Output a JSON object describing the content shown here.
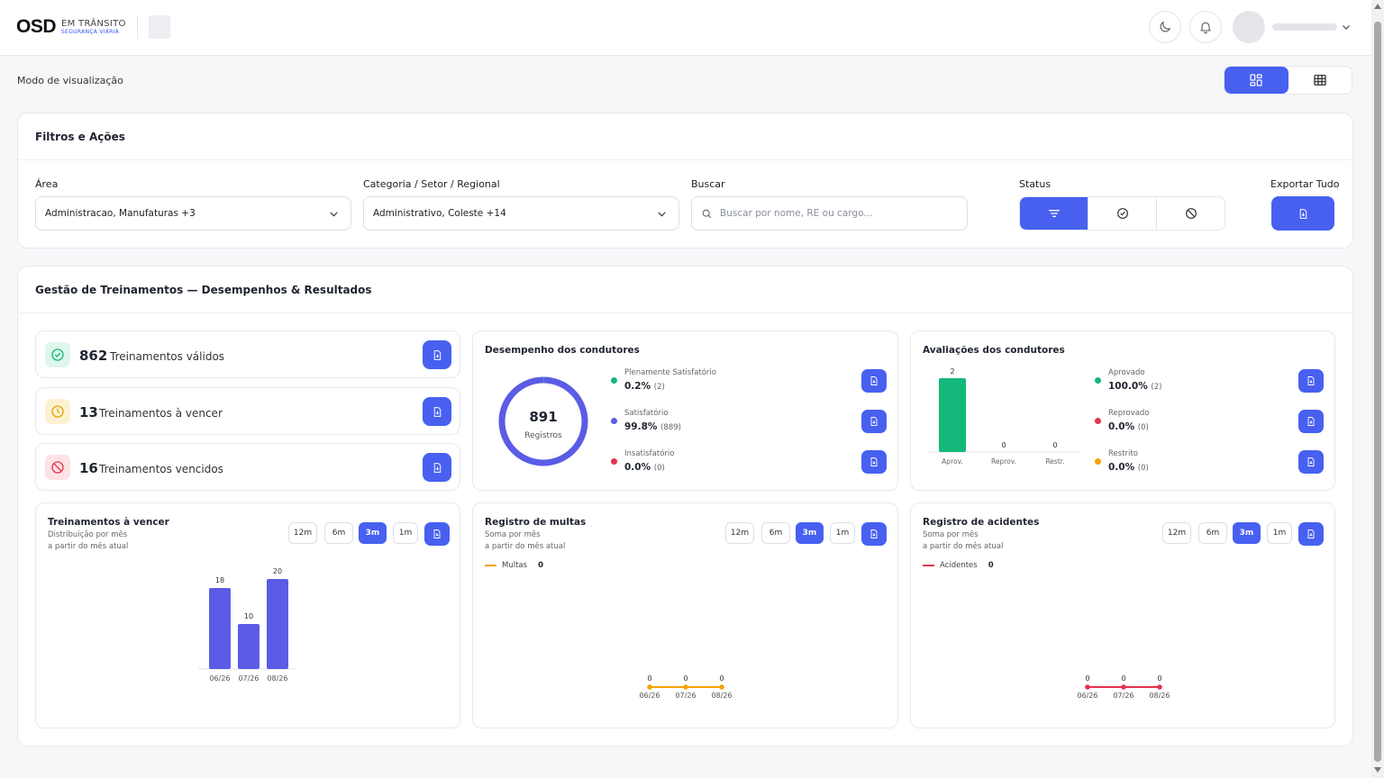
{
  "brand": {
    "logo": "OSD",
    "line1": "EM TRÂNSITO",
    "line2": "SEGURANÇA VIÁRIA"
  },
  "header": {
    "theme_icon": "moon-icon",
    "notif_icon": "bell-icon"
  },
  "view": {
    "label": "Modo de visualização",
    "options": [
      "grid-view-icon",
      "table-view-icon"
    ],
    "selected": 0
  },
  "filters": {
    "title": "Filtros e Ações",
    "area_label": "Área",
    "area_value": "Administracao, Manufaturas +3",
    "category_label": "Categoria / Setor / Regional",
    "category_value": "Administrativo, Coleste +14",
    "search_label": "Buscar",
    "search_placeholder": "Buscar por nome, RE ou cargo...",
    "status_label": "Status",
    "export_label": "Exportar Tudo"
  },
  "main": {
    "title": "Gestão de Treinamentos — Desempenhos & Resultados"
  },
  "kpis": [
    {
      "value": "862",
      "label": "Treinamentos válidos",
      "icon": "check-circle-icon",
      "color": "#14b87a",
      "bg": "#dff6ec"
    },
    {
      "value": "13",
      "label": "Treinamentos à vencer",
      "icon": "clock-alert-icon",
      "color": "#e0a200",
      "bg": "#fdf1d2"
    },
    {
      "value": "16",
      "label": "Treinamentos vencidos",
      "icon": "ban-icon",
      "color": "#e5334f",
      "bg": "#fde2e6"
    }
  ],
  "performance": {
    "title": "Desempenho dos condutores",
    "total": "891",
    "total_label": "Registros",
    "items": [
      {
        "name": "Plenamente Satisfatório",
        "pct": "0.2%",
        "count": "(2)",
        "color": "#14b87a",
        "value": 2
      },
      {
        "name": "Satisfatório",
        "pct": "99.8%",
        "count": "(889)",
        "color": "#5b5ce6",
        "value": 889
      },
      {
        "name": "Insatisfatório",
        "pct": "0.0%",
        "count": "(0)",
        "color": "#e5334f",
        "value": 0
      }
    ]
  },
  "evaluations": {
    "title": "Avaliações dos condutores",
    "items": [
      {
        "name": "Aprovado",
        "pct": "100.0%",
        "count": "(2)",
        "color": "#14b87a"
      },
      {
        "name": "Reprovado",
        "pct": "0.0%",
        "count": "(0)",
        "color": "#e5334f"
      },
      {
        "name": "Restrito",
        "pct": "0.0%",
        "count": "(0)",
        "color": "#f5a300"
      }
    ]
  },
  "periods": [
    "12m",
    "6m",
    "3m",
    "1m"
  ],
  "expiring": {
    "title": "Treinamentos à vencer",
    "subtitle": "Distribuição por mês\na partir do mês atual",
    "active": "3m"
  },
  "fines": {
    "title": "Registro de multas",
    "subtitle": "Soma por mês\na partir do mês atual",
    "legend": "Multas",
    "total": "0",
    "active": "3m",
    "color": "#f5a300"
  },
  "accidents": {
    "title": "Registro de acidentes",
    "subtitle": "Soma por mês\na partir do mês atual",
    "legend": "Acidentes",
    "total": "0",
    "active": "3m",
    "color": "#e5334f"
  },
  "chart_data": [
    {
      "type": "bar",
      "categories": [
        "Aprov.",
        "Reprov.",
        "Restr."
      ],
      "values": [
        2,
        0,
        0
      ],
      "title": "Avaliações dos condutores",
      "colors": [
        "#14b87a",
        "#14b87a",
        "#14b87a"
      ]
    },
    {
      "type": "bar",
      "categories": [
        "06/26",
        "07/26",
        "08/26"
      ],
      "values": [
        18,
        10,
        20
      ],
      "title": "Treinamentos à vencer",
      "color": "#5b5ce6"
    },
    {
      "type": "line",
      "categories": [
        "06/26",
        "07/26",
        "08/26"
      ],
      "series": [
        {
          "name": "Multas",
          "values": [
            0,
            0,
            0
          ]
        }
      ],
      "title": "Registro de multas",
      "color": "#f5a300"
    },
    {
      "type": "line",
      "categories": [
        "06/26",
        "07/26",
        "08/26"
      ],
      "series": [
        {
          "name": "Acidentes",
          "values": [
            0,
            0,
            0
          ]
        }
      ],
      "title": "Registro de acidentes",
      "color": "#e5334f"
    }
  ]
}
